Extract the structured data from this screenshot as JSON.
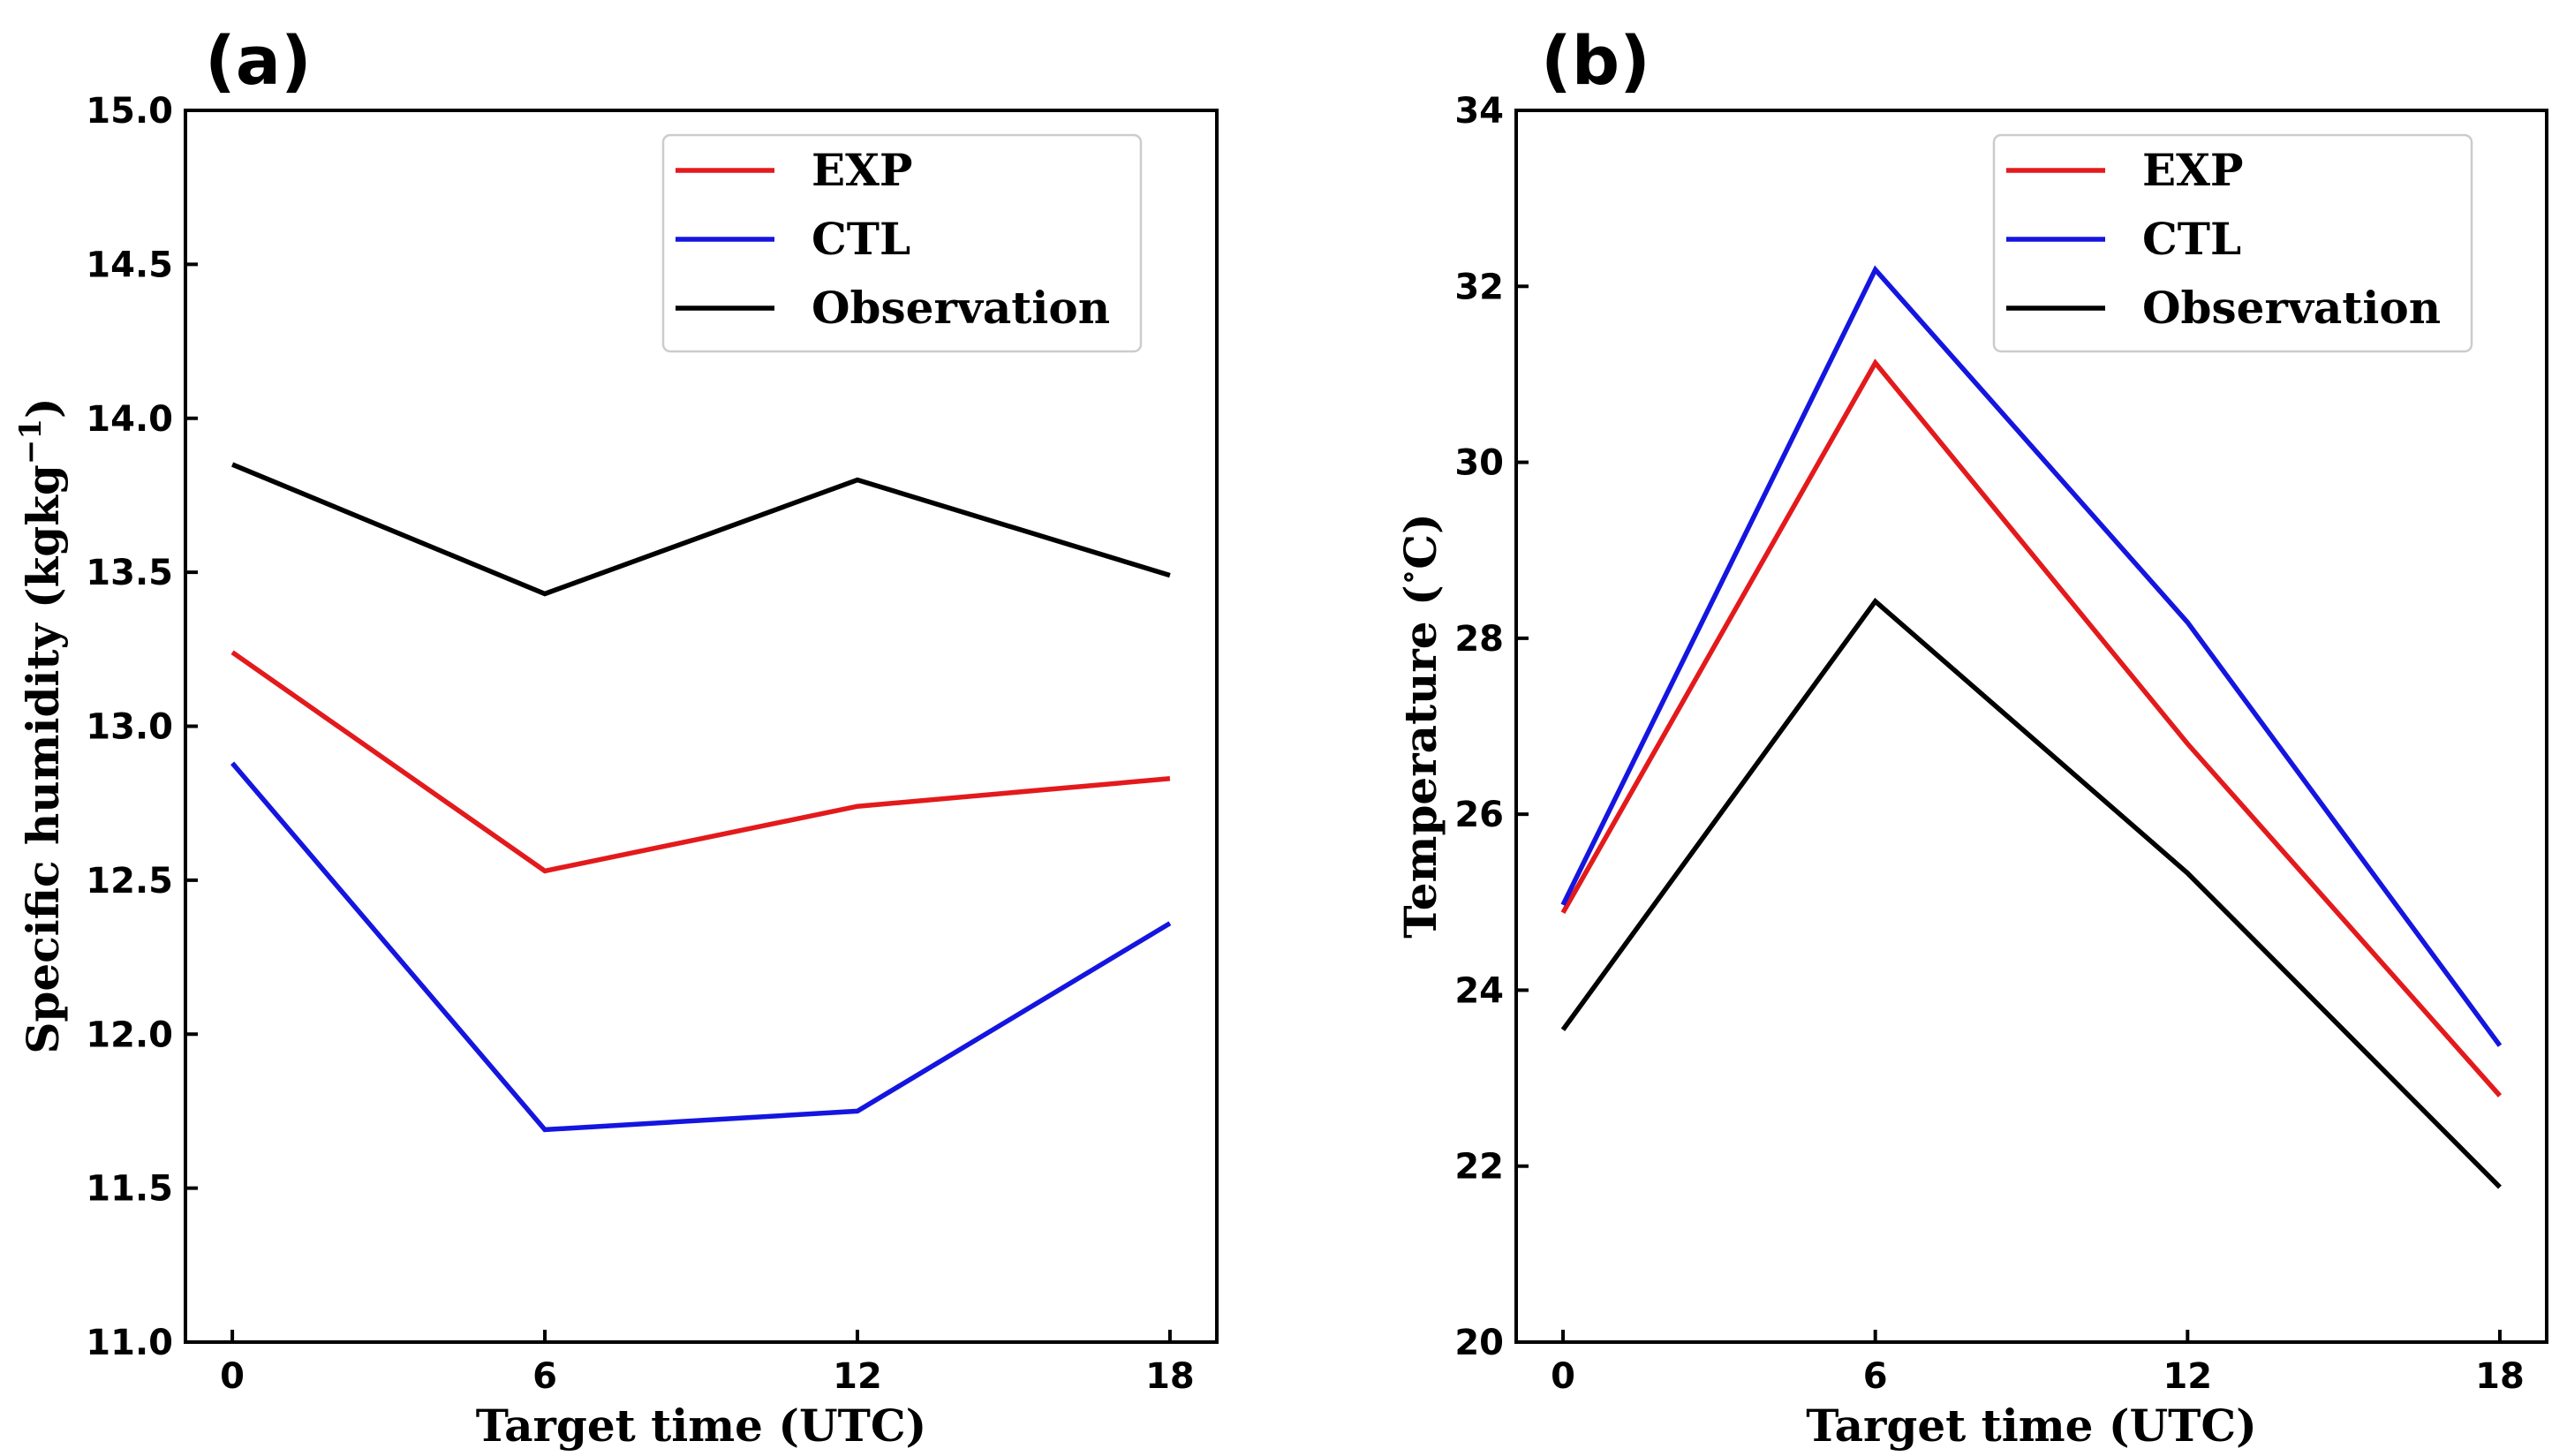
{
  "chart_data": [
    {
      "type": "line",
      "panel_label": "(a)",
      "title": "",
      "xlabel": "Target time (UTC)",
      "ylabel": "Specific humidity (kgkg",
      "ylabel_superscript": "−1",
      "ylabel_close": ")",
      "x": [
        0,
        6,
        12,
        18
      ],
      "xticks": [
        0,
        6,
        12,
        18
      ],
      "xlim": [
        -0.9,
        18.9
      ],
      "ylim": [
        11.0,
        15.0
      ],
      "yticks": [
        11.0,
        11.5,
        12.0,
        12.5,
        13.0,
        13.5,
        14.0,
        14.5,
        15.0
      ],
      "ytick_labels": [
        "11.0",
        "11.5",
        "12.0",
        "12.5",
        "13.0",
        "13.5",
        "14.0",
        "14.5",
        "15.0"
      ],
      "legend_position": "top-right",
      "series": [
        {
          "name": "EXP",
          "color": "#e31a1c",
          "values": [
            13.24,
            12.53,
            12.74,
            12.83
          ]
        },
        {
          "name": "CTL",
          "color": "#1515e0",
          "values": [
            12.88,
            11.69,
            11.75,
            12.36
          ]
        },
        {
          "name": "Observation",
          "color": "#000000",
          "values": [
            13.85,
            13.43,
            13.8,
            13.49
          ]
        }
      ]
    },
    {
      "type": "line",
      "panel_label": "(b)",
      "title": "",
      "xlabel": "Target time (UTC)",
      "ylabel": "Temperature (",
      "ylabel_superscript": "∘",
      "ylabel_close": "C)",
      "x": [
        0,
        6,
        12,
        18
      ],
      "xticks": [
        0,
        6,
        12,
        18
      ],
      "xlim": [
        -0.9,
        18.9
      ],
      "ylim": [
        20,
        34
      ],
      "yticks": [
        20,
        22,
        24,
        26,
        28,
        30,
        32,
        34
      ],
      "ytick_labels": [
        "20",
        "22",
        "24",
        "26",
        "28",
        "30",
        "32",
        "34"
      ],
      "legend_position": "top-right",
      "series": [
        {
          "name": "EXP",
          "color": "#e31a1c",
          "values": [
            24.88,
            31.13,
            26.8,
            22.8
          ]
        },
        {
          "name": "CTL",
          "color": "#1515e0",
          "values": [
            24.97,
            32.19,
            28.18,
            23.37
          ]
        },
        {
          "name": "Observation",
          "color": "#000000",
          "values": [
            23.55,
            28.42,
            25.33,
            21.76
          ]
        }
      ]
    }
  ]
}
